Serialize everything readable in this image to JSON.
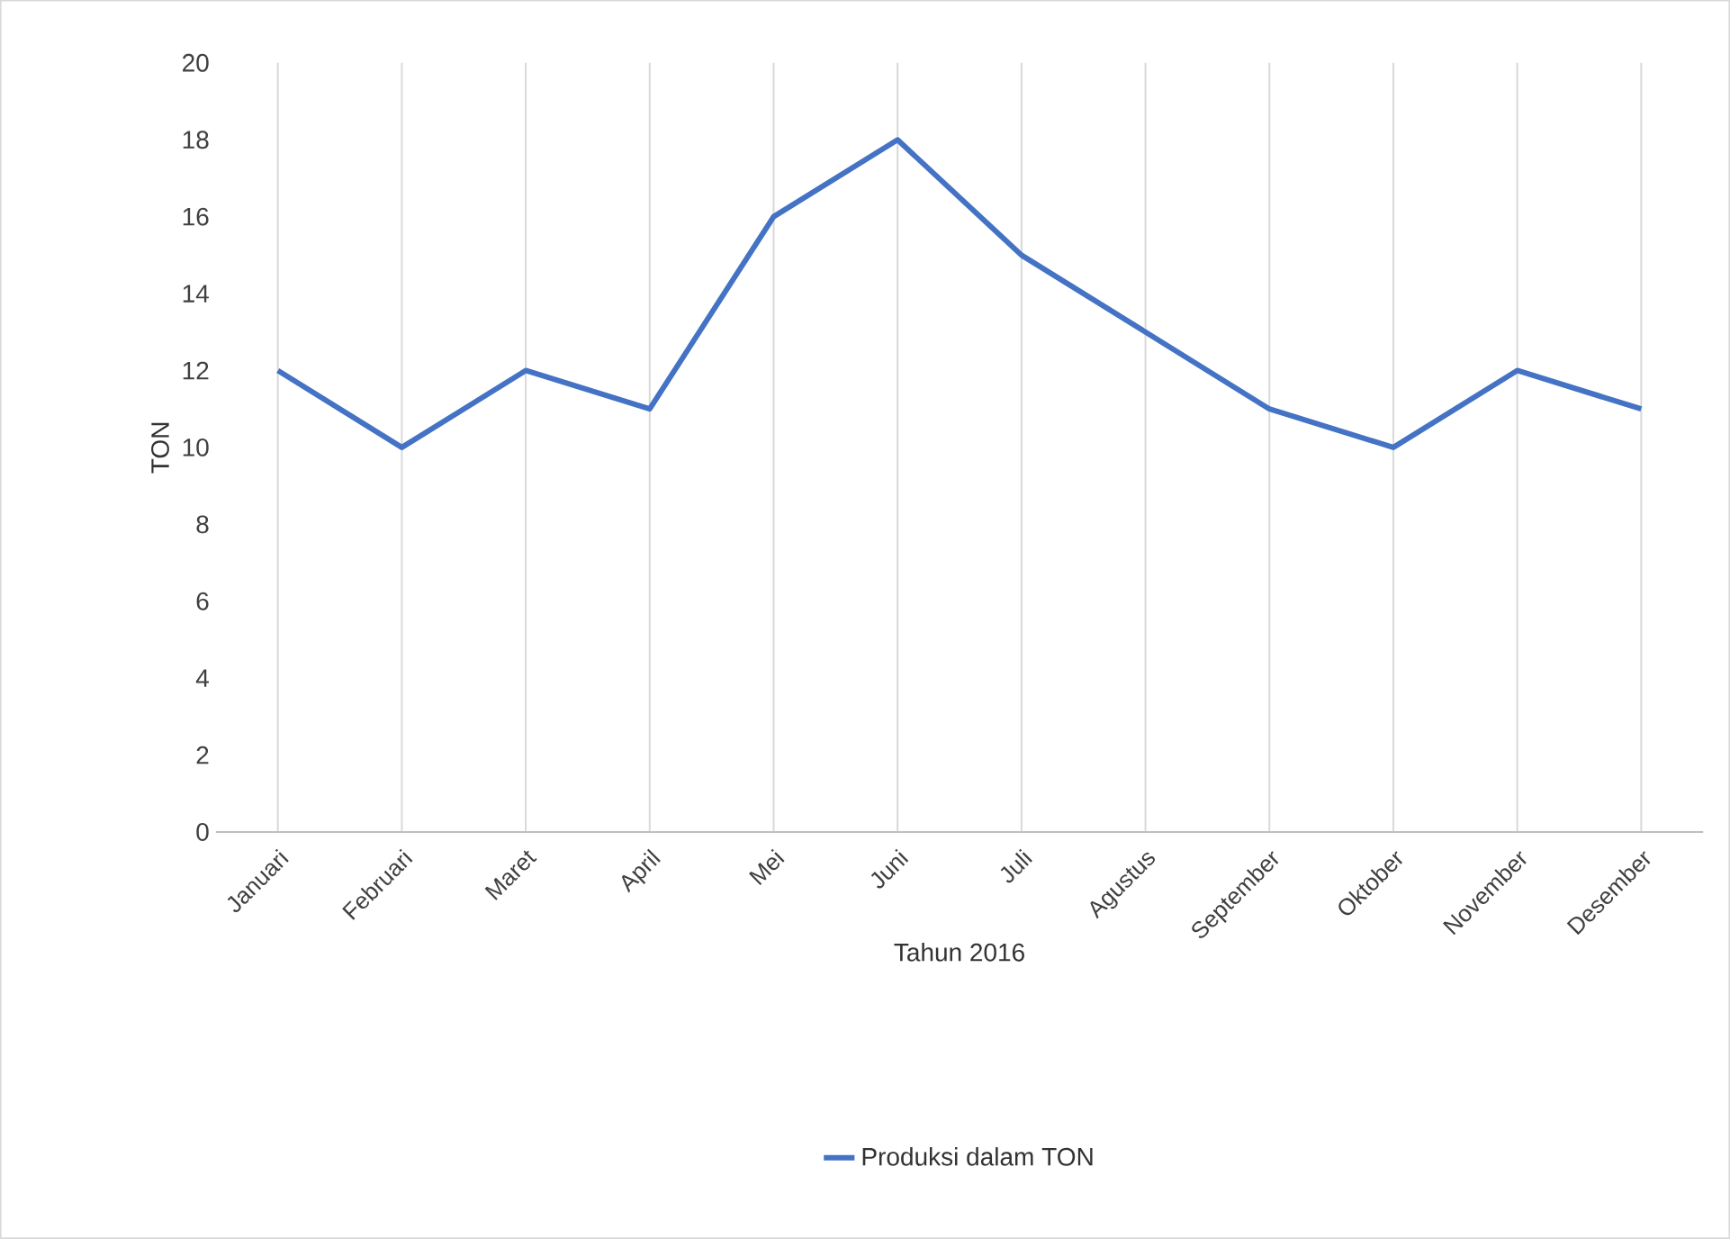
{
  "chart_data": {
    "type": "line",
    "categories": [
      "Januari",
      "Februari",
      "Maret",
      "April",
      "Mei",
      "Juni",
      "Juli",
      "Agustus",
      "September",
      "Oktober",
      "November",
      "Desember"
    ],
    "series": [
      {
        "name": "Produksi dalam TON",
        "color": "#4472c4",
        "values": [
          12,
          10,
          12,
          11,
          16,
          18,
          15,
          13,
          11,
          10,
          12,
          11
        ]
      }
    ],
    "xlabel": "Tahun 2016",
    "ylabel": "TON",
    "ylim": [
      0,
      20
    ],
    "yticks": [
      0,
      2,
      4,
      6,
      8,
      10,
      12,
      14,
      16,
      18,
      20
    ],
    "grid": "x",
    "legend": "bottom",
    "marker": "none",
    "line_style": "solid"
  }
}
